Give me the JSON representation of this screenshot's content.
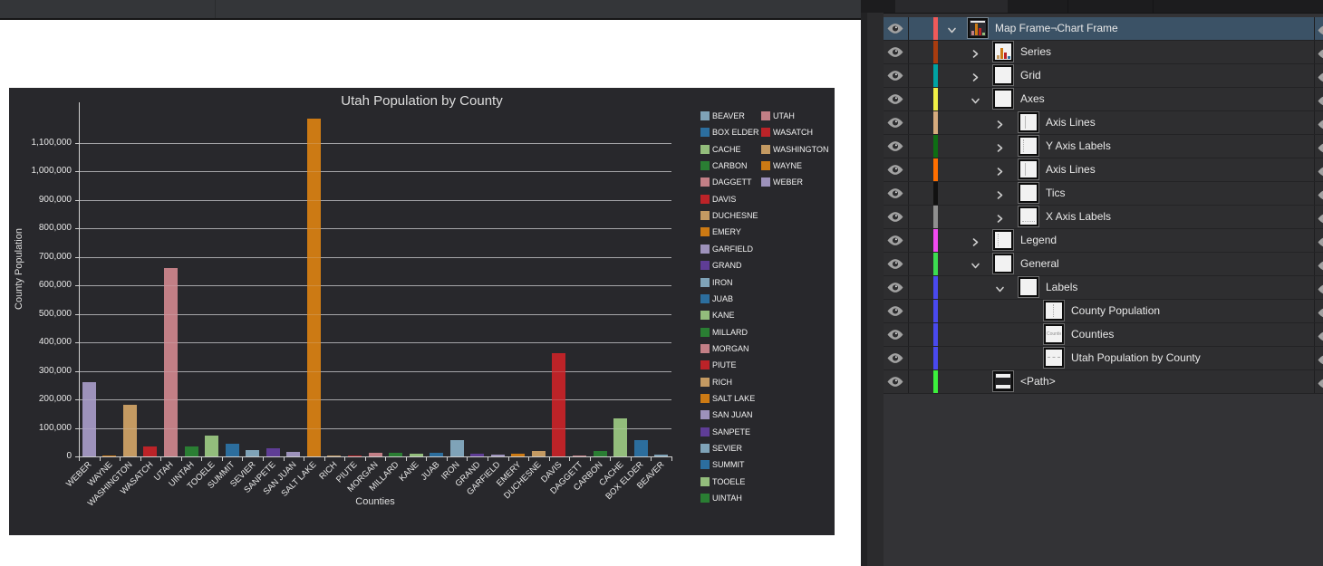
{
  "chart_data": {
    "type": "bar",
    "title": "Utah Population by County",
    "xlabel": "Counties",
    "ylabel": "County Population",
    "ylim": [
      0,
      1243000
    ],
    "ytick_interval": 100000,
    "ytick_labels": [
      "0",
      "100,000",
      "200,000",
      "300,000",
      "400,000",
      "500,000",
      "600,000",
      "700,000",
      "800,000",
      "900,000",
      "1,000,000",
      "1,100,000"
    ],
    "grid": true,
    "legend_position": "right-two-columns",
    "legend_columns": [
      24,
      5
    ],
    "background": "#28282c",
    "categories": [
      "WEBER",
      "WAYNE",
      "WASHINGTON",
      "WASATCH",
      "UTAH",
      "UINTAH",
      "TOOELE",
      "SUMMIT",
      "SEVIER",
      "SANPETE",
      "SAN JUAN",
      "SALT LAKE",
      "RICH",
      "PIUTE",
      "MORGAN",
      "MILLARD",
      "KANE",
      "JUAB",
      "IRON",
      "GRAND",
      "GARFIELD",
      "EMERY",
      "DUCHESNE",
      "DAVIS",
      "DAGGETT",
      "CARBON",
      "CACHE",
      "BOX ELDER",
      "BEAVER"
    ],
    "values": [
      262000,
      2500,
      181000,
      35000,
      660000,
      36000,
      73000,
      43000,
      22000,
      29000,
      15000,
      1186000,
      2500,
      1500,
      12000,
      13000,
      8000,
      12000,
      57000,
      10000,
      5000,
      10000,
      20000,
      363000,
      1000,
      20000,
      134000,
      58000,
      7000
    ],
    "legend": [
      {
        "label": "BEAVER",
        "color": "#7fa3b8"
      },
      {
        "label": "BOX ELDER",
        "color": "#2c6e9e"
      },
      {
        "label": "CACHE",
        "color": "#93bd7c"
      },
      {
        "label": "CARBON",
        "color": "#2a7e33"
      },
      {
        "label": "DAGGETT",
        "color": "#c27f86"
      },
      {
        "label": "DAVIS",
        "color": "#bc2328"
      },
      {
        "label": "DUCHESNE",
        "color": "#c49a62"
      },
      {
        "label": "EMERY",
        "color": "#cc7a14"
      },
      {
        "label": "GARFIELD",
        "color": "#9d92bb"
      },
      {
        "label": "GRAND",
        "color": "#5f3d96"
      },
      {
        "label": "IRON",
        "color": "#7fa3b8"
      },
      {
        "label": "JUAB",
        "color": "#2c6e9e"
      },
      {
        "label": "KANE",
        "color": "#93bd7c"
      },
      {
        "label": "MILLARD",
        "color": "#2a7e33"
      },
      {
        "label": "MORGAN",
        "color": "#c27f86"
      },
      {
        "label": "PIUTE",
        "color": "#bc2328"
      },
      {
        "label": "RICH",
        "color": "#c49a62"
      },
      {
        "label": "SALT LAKE",
        "color": "#cc7a14"
      },
      {
        "label": "SAN JUAN",
        "color": "#9d92bb"
      },
      {
        "label": "SANPETE",
        "color": "#5f3d96"
      },
      {
        "label": "SEVIER",
        "color": "#7fa3b8"
      },
      {
        "label": "SUMMIT",
        "color": "#2c6e9e"
      },
      {
        "label": "TOOELE",
        "color": "#93bd7c"
      },
      {
        "label": "UINTAH",
        "color": "#2a7e33"
      },
      {
        "label": "UTAH",
        "color": "#c27f86"
      },
      {
        "label": "WASATCH",
        "color": "#bc2328"
      },
      {
        "label": "WASHINGTON",
        "color": "#c49a62"
      },
      {
        "label": "WAYNE",
        "color": "#cc7a14"
      },
      {
        "label": "WEBER",
        "color": "#9d92bb"
      }
    ]
  },
  "layers_panel": {
    "icons": {
      "visibility": "eye-icon",
      "expand": "chevron-icon"
    },
    "selected_row": "Map Frame¬Chart Frame",
    "rows": [
      {
        "label": "Map Frame¬Chart Frame",
        "indent": 1,
        "chevron": "expanded",
        "tag_color": "#ef5a5a",
        "selected": true,
        "thumb": "chart-dark"
      },
      {
        "label": "Series",
        "indent": 2,
        "chevron": "collapsed",
        "tag_color": "#a83c0f",
        "selected": false,
        "thumb": "chart-mini"
      },
      {
        "label": "Grid",
        "indent": 2,
        "chevron": "collapsed",
        "tag_color": "#00a3a3",
        "selected": false,
        "thumb": "plain"
      },
      {
        "label": "Axes",
        "indent": 2,
        "chevron": "expanded",
        "tag_color": "#f0f046",
        "selected": false,
        "thumb": "plain"
      },
      {
        "label": "Axis Lines",
        "indent": 3,
        "chevron": "collapsed",
        "tag_color": "#d6ab7d",
        "selected": false,
        "thumb": "vline"
      },
      {
        "label": "Y Axis Labels",
        "indent": 3,
        "chevron": "collapsed",
        "tag_color": "#0e6e14",
        "selected": false,
        "thumb": "left-dots"
      },
      {
        "label": "Axis Lines",
        "indent": 3,
        "chevron": "collapsed",
        "tag_color": "#ff6f00",
        "selected": false,
        "thumb": "vline"
      },
      {
        "label": "Tics",
        "indent": 3,
        "chevron": "collapsed",
        "tag_color": "#111111",
        "selected": false,
        "thumb": "plain"
      },
      {
        "label": "X Axis Labels",
        "indent": 3,
        "chevron": "collapsed",
        "tag_color": "#8f8f8f",
        "selected": false,
        "thumb": "bottom-dots"
      },
      {
        "label": "Legend",
        "indent": 2,
        "chevron": "collapsed",
        "tag_color": "#f24af2",
        "selected": false,
        "thumb": "left-dots"
      },
      {
        "label": "General",
        "indent": 2,
        "chevron": "expanded",
        "tag_color": "#3cdc50",
        "selected": false,
        "thumb": "plain"
      },
      {
        "label": "Labels",
        "indent": 3,
        "chevron": "expanded",
        "tag_color": "#4949ee",
        "selected": false,
        "thumb": "plain"
      },
      {
        "label": "County Population",
        "indent": 4,
        "chevron": "none",
        "tag_color": "#4949ee",
        "selected": false,
        "thumb": "vdots"
      },
      {
        "label": "Counties",
        "indent": 4,
        "chevron": "none",
        "tag_color": "#4949ee",
        "selected": false,
        "thumb": "text"
      },
      {
        "label": "Utah Population by County",
        "indent": 4,
        "chevron": "none",
        "tag_color": "#4949ee",
        "selected": false,
        "thumb": "hdash"
      },
      {
        "label": "<Path>",
        "indent": 2,
        "chevron": "none",
        "tag_color": "#3cf03c",
        "selected": false,
        "thumb": "path"
      }
    ]
  }
}
